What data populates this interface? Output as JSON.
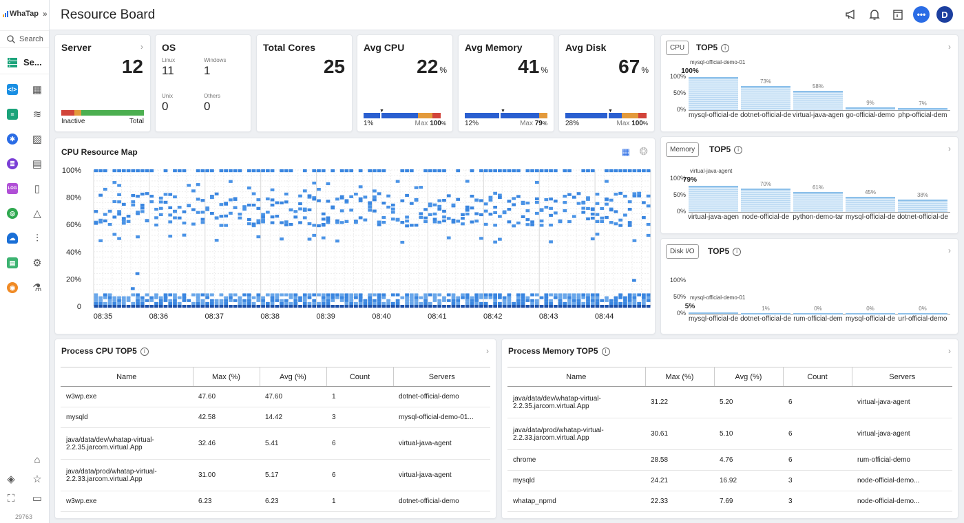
{
  "app": {
    "logo": "WhaTap",
    "collapse": "»",
    "search": "Search",
    "section": "Se...",
    "footer_id": "29763"
  },
  "header": {
    "title": "Resource Board",
    "avatar": "D",
    "chat": "•••"
  },
  "server": {
    "title": "Server",
    "count": "12",
    "inactive_label": "Inactive",
    "total_label": "Total"
  },
  "os": {
    "title": "OS",
    "linux_label": "Linux",
    "linux": "11",
    "windows_label": "Windows",
    "windows": "1",
    "unix_label": "Unix",
    "unix": "0",
    "others_label": "Others",
    "others": "0"
  },
  "cores": {
    "title": "Total Cores",
    "value": "25"
  },
  "avg_cpu": {
    "title": "Avg CPU",
    "value": "22",
    "unit": "%",
    "min": "1%",
    "max_label": "Max",
    "max": "100",
    "max_unit": "%"
  },
  "avg_mem": {
    "title": "Avg Memory",
    "value": "41",
    "unit": "%",
    "min": "12%",
    "max_label": "Max",
    "max": "79",
    "max_unit": "%"
  },
  "avg_disk": {
    "title": "Avg Disk",
    "value": "67",
    "unit": "%",
    "min": "28%",
    "max_label": "Max",
    "max": "100",
    "max_unit": "%"
  },
  "cpu_top5": {
    "chip": "CPU",
    "title": "TOP5",
    "top_name": "mysql-official-demo-01",
    "yticks": [
      "100%",
      "50%",
      "0%"
    ],
    "items": [
      {
        "name": "mysql-official-de",
        "pct": "100%",
        "value": 100
      },
      {
        "name": "dotnet-official-de",
        "pct": "73%",
        "value": 73
      },
      {
        "name": "virtual-java-agen",
        "pct": "58%",
        "value": 58
      },
      {
        "name": "go-official-demo",
        "pct": "9%",
        "value": 9
      },
      {
        "name": "php-official-dem",
        "pct": "7%",
        "value": 7
      }
    ]
  },
  "mem_top5": {
    "chip": "Memory",
    "title": "TOP5",
    "top_name": "virtual-java-agent",
    "yticks": [
      "100%",
      "50%",
      "0%"
    ],
    "items": [
      {
        "name": "virtual-java-agen",
        "pct": "79%",
        "value": 79
      },
      {
        "name": "node-official-de",
        "pct": "70%",
        "value": 70
      },
      {
        "name": "python-demo-tar",
        "pct": "61%",
        "value": 61
      },
      {
        "name": "mysql-official-de",
        "pct": "45%",
        "value": 45
      },
      {
        "name": "dotnet-official-de",
        "pct": "38%",
        "value": 38
      }
    ]
  },
  "disk_top5": {
    "chip": "Disk I/O",
    "title": "TOP5",
    "top_name": "mysql-official-demo-01",
    "yticks": [
      "100%",
      "50%",
      "0%"
    ],
    "items": [
      {
        "name": "mysql-official-de",
        "pct": "5%",
        "value": 5
      },
      {
        "name": "dotnet-official-de",
        "pct": "1%",
        "value": 1
      },
      {
        "name": "rum-official-dem",
        "pct": "0%",
        "value": 0
      },
      {
        "name": "mysql-official-de",
        "pct": "0%",
        "value": 0
      },
      {
        "name": "url-official-demo",
        "pct": "0%",
        "value": 0
      }
    ]
  },
  "cpu_map": {
    "title": "CPU Resource Map",
    "yticks": [
      "100%",
      "80%",
      "60%",
      "40%",
      "20%",
      "0"
    ],
    "xticks": [
      "08:35",
      "08:36",
      "08:37",
      "08:38",
      "08:39",
      "08:40",
      "08:41",
      "08:42",
      "08:43",
      "08:44"
    ]
  },
  "proc_cpu": {
    "title": "Process CPU TOP5",
    "columns": [
      "Name",
      "Max (%)",
      "Avg (%)",
      "Count",
      "Servers"
    ],
    "rows": [
      [
        "w3wp.exe",
        "47.60",
        "47.60",
        "1",
        "dotnet-official-demo"
      ],
      [
        "mysqld",
        "42.58",
        "14.42",
        "3",
        "mysql-official-demo-01..."
      ],
      [
        "java/data/dev/whatap-virtual-2.2.35.jarcom.virtual.App",
        "32.46",
        "5.41",
        "6",
        "virtual-java-agent"
      ],
      [
        "java/data/prod/whatap-virtual-2.2.33.jarcom.virtual.App",
        "31.00",
        "5.17",
        "6",
        "virtual-java-agent"
      ],
      [
        "w3wp.exe",
        "6.23",
        "6.23",
        "1",
        "dotnet-official-demo"
      ]
    ]
  },
  "proc_mem": {
    "title": "Process Memory TOP5",
    "columns": [
      "Name",
      "Max (%)",
      "Avg (%)",
      "Count",
      "Servers"
    ],
    "rows": [
      [
        "java/data/dev/whatap-virtual-2.2.35.jarcom.virtual.App",
        "31.22",
        "5.20",
        "6",
        "virtual-java-agent"
      ],
      [
        "java/data/prod/whatap-virtual-2.2.33.jarcom.virtual.App",
        "30.61",
        "5.10",
        "6",
        "virtual-java-agent"
      ],
      [
        "chrome",
        "28.58",
        "4.76",
        "6",
        "rum-official-demo"
      ],
      [
        "mysqld",
        "24.21",
        "16.92",
        "3",
        "node-official-demo..."
      ],
      [
        "whatap_npmd",
        "22.33",
        "7.69",
        "3",
        "node-official-demo..."
      ]
    ]
  },
  "colors": {
    "accent": "#2a6ce5",
    "bar_blue": "#2a5fd0",
    "bar_orange": "#e39a3b",
    "bar_red": "#d2443a",
    "bar_green": "#4caf50"
  }
}
